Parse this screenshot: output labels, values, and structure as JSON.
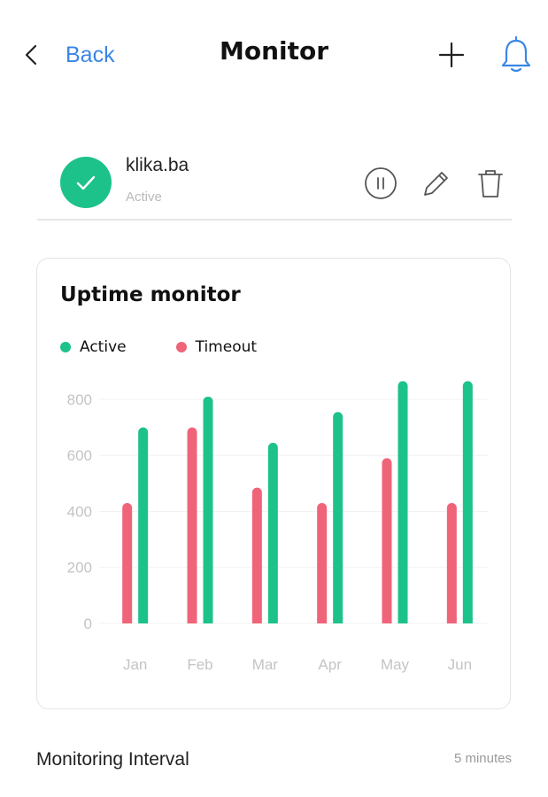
{
  "header": {
    "back_label": "Back",
    "title": "Monitor",
    "icons": {
      "back": "chevron-left-icon",
      "add": "plus-icon",
      "notifications": "bell-icon"
    }
  },
  "site": {
    "name": "klika.ba",
    "status": "Active",
    "status_color": "#1dc28a",
    "actions": [
      "pause-icon",
      "edit-icon",
      "trash-icon"
    ]
  },
  "chart_data": {
    "type": "bar",
    "title": "Uptime monitor",
    "categories": [
      "Jan",
      "Feb",
      "Mar",
      "Apr",
      "May",
      "Jun"
    ],
    "series": [
      {
        "name": "Timeout",
        "color": "#f0647a",
        "values": [
          430,
          700,
          485,
          430,
          590,
          430
        ]
      },
      {
        "name": "Active",
        "color": "#1dc28a",
        "values": [
          700,
          810,
          645,
          755,
          865,
          865
        ]
      }
    ],
    "legend": [
      "Active",
      "Timeout"
    ],
    "legend_placement": "top-left",
    "y_ticks": [
      0,
      200,
      400,
      600,
      800
    ],
    "ylim": [
      0,
      860
    ],
    "xlabel": "",
    "ylabel": "",
    "grid": true
  },
  "interval": {
    "label": "Monitoring Interval",
    "value": "5 minutes"
  },
  "colors": {
    "accent": "#3a86e6",
    "active": "#1dc28a",
    "timeout": "#f0647a"
  }
}
